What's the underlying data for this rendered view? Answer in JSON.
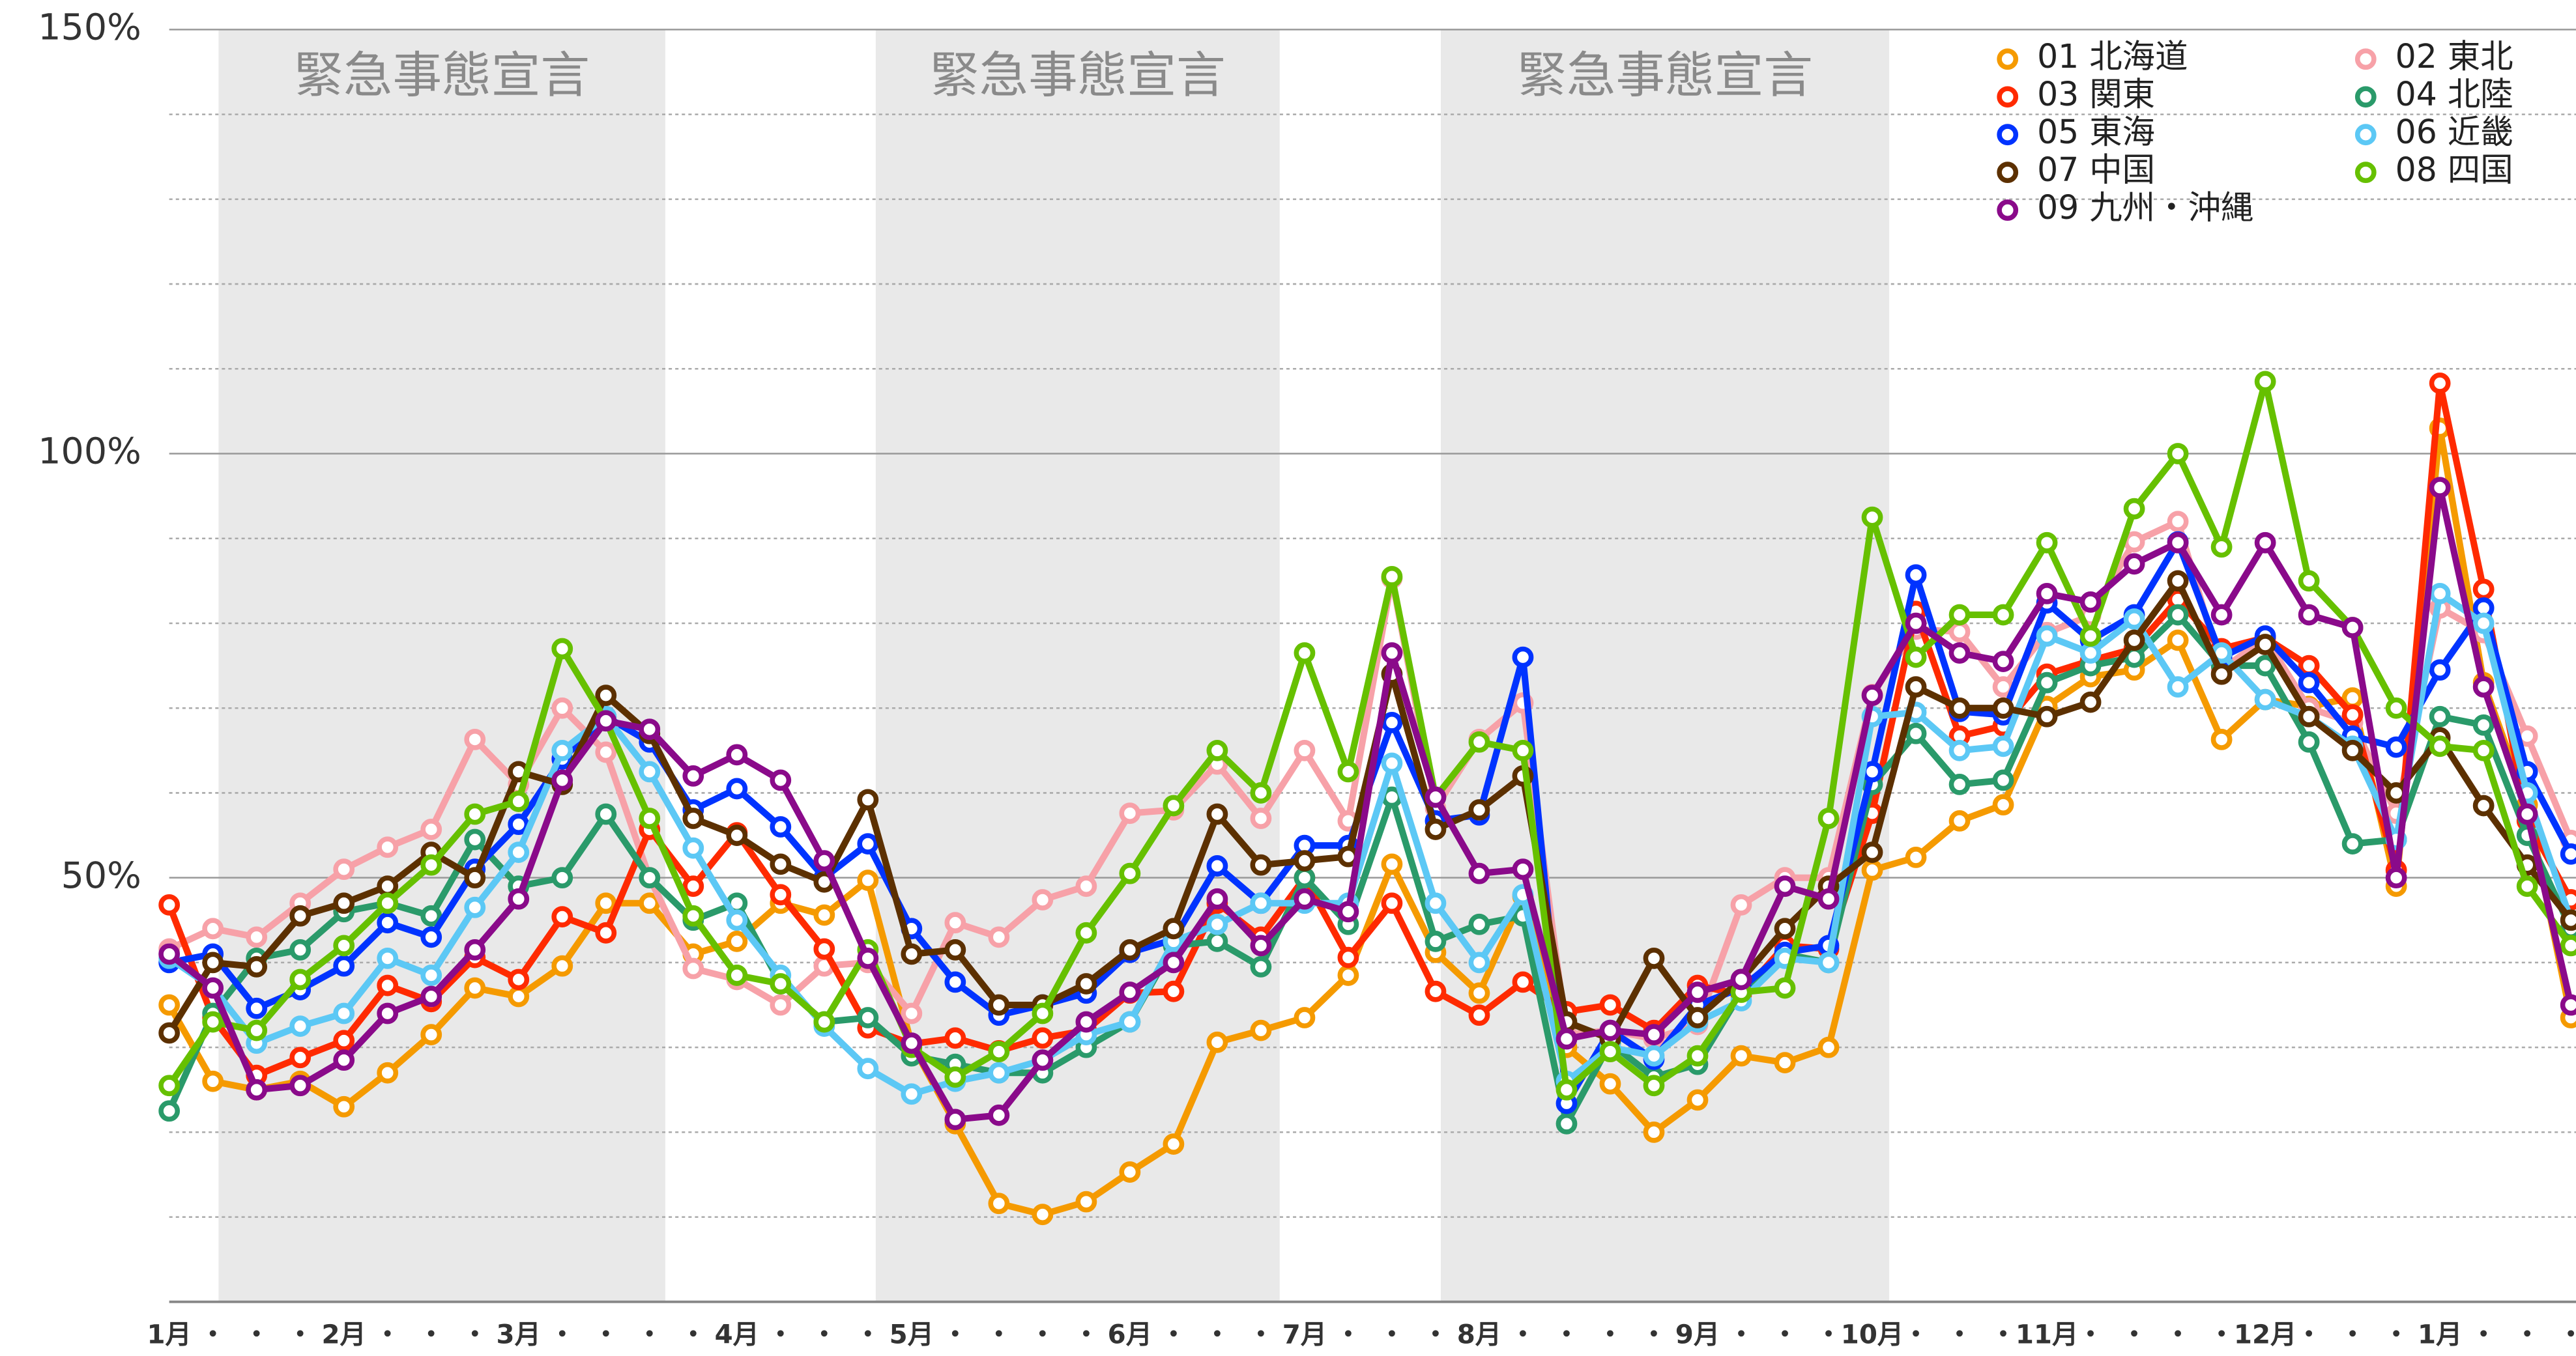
{
  "chart_data": {
    "type": "line",
    "categories": [
      "1月",
      "・",
      "・",
      "・",
      "2月",
      "・",
      "・",
      "・",
      "3月",
      "・",
      "・",
      "・",
      "・",
      "4月",
      "・",
      "・",
      "・",
      "5月",
      "・",
      "・",
      "・",
      "・",
      "6月",
      "・",
      "・",
      "・",
      "7月",
      "・",
      "・",
      "・",
      "8月",
      "・",
      "・",
      "・",
      "・",
      "9月",
      "・",
      "・",
      "・",
      "10月",
      "・",
      "・",
      "・",
      "11月",
      "・",
      "・",
      "・",
      "・",
      "12月",
      "・",
      "・",
      "・",
      "1月",
      "・",
      "・",
      "・"
    ],
    "ylim": [
      0,
      150
    ],
    "yticks": [
      {
        "value": 50,
        "label": "50%"
      },
      {
        "value": 100,
        "label": "100%"
      },
      {
        "value": 150,
        "label": "150%"
      }
    ],
    "minor_yticks": [
      10,
      20,
      30,
      40,
      60,
      70,
      80,
      90,
      110,
      120,
      130,
      140
    ],
    "grid": true,
    "legend": "upper right",
    "spans": [
      {
        "label": "緊急事態宣言",
        "start": 1.13,
        "end": 11.36
      },
      {
        "label": "緊急事態宣言",
        "start": 16.18,
        "end": 25.43
      },
      {
        "label": "緊急事態宣言",
        "start": 29.12,
        "end": 39.39
      }
    ],
    "series": [
      {
        "name": "01 北海道",
        "color": "#f59a00",
        "values": [
          35,
          26,
          25,
          26,
          23,
          27,
          31.5,
          37,
          36,
          39.6,
          47,
          47,
          41,
          42.5,
          47,
          45.6,
          49.7,
          30.4,
          21,
          11.6,
          10.3,
          11.8,
          15.3,
          18.6,
          30.6,
          32,
          33.5,
          38.5,
          51.6,
          41.2,
          36.4,
          47.8,
          30,
          25.7,
          20,
          23.8,
          29,
          28.2,
          30,
          50.9,
          52.4,
          56.7,
          58.6,
          70.2,
          73.7,
          74.5,
          78,
          66.3,
          71,
          70.2,
          71.2,
          49,
          103,
          73,
          58.6,
          33.5
        ]
      },
      {
        "name": "02 東北",
        "color": "#f7a1a8",
        "values": [
          41.6,
          44,
          43,
          47,
          51,
          53.6,
          55.7,
          66.3,
          61,
          70,
          64.8,
          50,
          39.3,
          38,
          35,
          39.6,
          40,
          34,
          44.7,
          43,
          47.4,
          49,
          57.6,
          58,
          63.4,
          57,
          65,
          56.7,
          85.3,
          58.2,
          66.3,
          70.6,
          31.5,
          32,
          31,
          32.7,
          46.8,
          50,
          50,
          71.6,
          79.3,
          79,
          72.5,
          78.9,
          80.9,
          89.6,
          92,
          74.5,
          78.3,
          70,
          68.3,
          57.6,
          81.8,
          78.9,
          66.7,
          54.4
        ]
      },
      {
        "name": "03 関東",
        "color": "#ff2a00",
        "values": [
          46.8,
          33.5,
          26.7,
          28.8,
          30.8,
          37.3,
          35.4,
          40.6,
          38,
          45.4,
          43.5,
          55.7,
          49,
          55.3,
          48,
          41.6,
          32.3,
          30.4,
          31.1,
          29.6,
          31.1,
          32,
          36.4,
          36.6,
          47,
          43,
          50,
          40.6,
          47,
          36.6,
          33.8,
          37.7,
          34.2,
          35,
          32,
          37.3,
          36.2,
          42,
          41.6,
          57.6,
          81.4,
          66.7,
          67.9,
          74,
          75.6,
          77,
          82.8,
          77,
          78.3,
          75,
          69.2,
          50.9,
          108.3,
          84,
          56.7,
          47.4
        ]
      },
      {
        "name": "04 北陸",
        "color": "#2a9a6a",
        "values": [
          22.5,
          34,
          40.5,
          41.5,
          46,
          47,
          45.5,
          54.5,
          49,
          50,
          57.5,
          50,
          45,
          47,
          37.5,
          33,
          33.5,
          29,
          28,
          27,
          27,
          30,
          33,
          42,
          42.5,
          39.5,
          50,
          44.5,
          59.5,
          42.5,
          44.5,
          45.5,
          21,
          30.5,
          26.5,
          28,
          36.5,
          41,
          40,
          61,
          67,
          61,
          61.5,
          73,
          75,
          76,
          81,
          75,
          75,
          66,
          54,
          54.5,
          69,
          68,
          55,
          44
        ]
      },
      {
        "name": "05 東海",
        "color": "#0033ff",
        "values": [
          40,
          41,
          34.6,
          36.8,
          39.6,
          44.7,
          43,
          51,
          56.3,
          64,
          69,
          66,
          58,
          60.5,
          56,
          50,
          54,
          44,
          37.7,
          33.8,
          35,
          36.4,
          41.2,
          42.7,
          51.4,
          47,
          53.8,
          53.8,
          68.3,
          56.7,
          57.4,
          76,
          23.4,
          32,
          28.6,
          35,
          37,
          41.2,
          42,
          62.5,
          85.7,
          69.6,
          69.2,
          82.4,
          78,
          81,
          89.6,
          76,
          78.5,
          73,
          66.7,
          65.4,
          74.5,
          81.8,
          62.5,
          52.8
        ]
      },
      {
        "name": "06 近畿",
        "color": "#5cc8f5",
        "values": [
          40.5,
          37,
          30.5,
          32.5,
          34,
          40.5,
          38.5,
          46.5,
          53,
          65,
          69,
          62.5,
          53.5,
          45,
          38.5,
          32.5,
          27.5,
          24.5,
          26,
          27,
          28.5,
          31.5,
          33,
          42.5,
          44.5,
          47,
          47,
          47,
          63.5,
          47,
          40,
          48,
          26,
          30,
          29,
          33,
          35.5,
          40.5,
          40,
          69,
          69.5,
          65,
          65.5,
          78.5,
          76.5,
          80.5,
          72.5,
          76.5,
          71,
          69,
          65.5,
          54.5,
          83.5,
          80,
          60,
          45
        ]
      },
      {
        "name": "07 中国",
        "color": "#5c3000",
        "values": [
          31.7,
          40,
          39.5,
          45.5,
          47,
          49,
          53,
          50,
          62.5,
          61,
          71.5,
          67,
          57,
          55,
          51.6,
          49.5,
          59.2,
          41,
          41.5,
          35,
          35,
          37.5,
          41.5,
          44,
          57.5,
          51.5,
          52,
          52.5,
          74,
          55.7,
          58,
          62,
          33,
          31,
          40.5,
          33.5,
          38,
          44,
          49,
          53,
          72.5,
          70,
          70,
          69,
          70.7,
          78,
          85,
          74,
          77.5,
          69,
          65,
          60,
          66.5,
          58.5,
          51.5,
          45
        ]
      },
      {
        "name": "08 四国",
        "color": "#66c000",
        "values": [
          25.5,
          33,
          32,
          38,
          42,
          47,
          51.5,
          57.5,
          59,
          77,
          68.5,
          57,
          45.5,
          38.5,
          37.5,
          33,
          41.5,
          30,
          26.5,
          29.5,
          34,
          43.5,
          50.5,
          58.5,
          65,
          60,
          76.5,
          62.5,
          85.5,
          59.5,
          66,
          65,
          25,
          29.5,
          25.5,
          29,
          36.5,
          37,
          57,
          92.5,
          76,
          81,
          81,
          89.5,
          78.5,
          93.5,
          100,
          89,
          108.5,
          85,
          79.5,
          70,
          65.5,
          65,
          49,
          42
        ]
      },
      {
        "name": "09 九州・沖縄",
        "color": "#8a0a8a",
        "values": [
          41,
          37,
          25,
          25.5,
          28.5,
          34,
          36,
          41.5,
          47.5,
          61.5,
          68.5,
          67.5,
          62,
          64.5,
          61.5,
          52,
          40.5,
          30.5,
          21.5,
          22,
          28.5,
          33,
          36.5,
          40,
          47.5,
          42,
          47.5,
          46,
          76.5,
          59.5,
          50.5,
          51,
          31,
          32,
          31.5,
          36.5,
          38,
          49,
          47.5,
          71.5,
          80,
          76.5,
          75.5,
          83.5,
          82.5,
          87,
          89.5,
          81,
          89.5,
          81,
          79.5,
          50,
          96,
          72.5,
          57.5,
          35
        ]
      }
    ]
  }
}
